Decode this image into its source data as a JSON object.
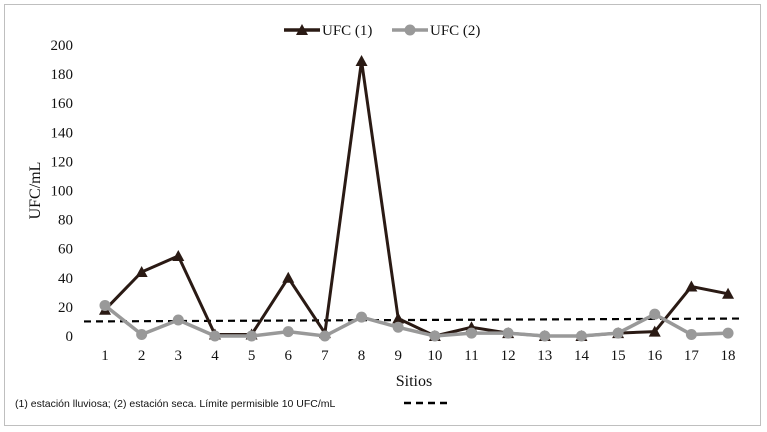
{
  "chart_data": {
    "type": "line",
    "ylabel": "UFC/mL",
    "xlabel": "Sitios",
    "ylim": [
      0,
      200
    ],
    "yticks": [
      "0",
      "20",
      "40",
      "60",
      "80",
      "100",
      "120",
      "140",
      "160",
      "180",
      "200"
    ],
    "categories": [
      "1",
      "2",
      "3",
      "4",
      "5",
      "6",
      "7",
      "8",
      "9",
      "10",
      "11",
      "12",
      "13",
      "14",
      "15",
      "16",
      "17",
      "18"
    ],
    "grid": false,
    "legend_position": "top",
    "series": [
      {
        "name": "UFC (1)",
        "marker": "triangle",
        "color": "#2a1a14",
        "values": [
          18,
          44,
          55,
          1,
          1,
          40,
          2,
          189,
          12,
          0,
          6,
          2,
          0,
          0,
          2,
          3,
          34,
          29
        ]
      },
      {
        "name": "UFC (2)",
        "marker": "circle",
        "color": "#999999",
        "values": [
          21,
          1,
          11,
          0,
          0,
          3,
          0,
          13,
          6,
          0,
          2,
          2,
          0,
          0,
          2,
          15,
          1,
          2
        ]
      }
    ],
    "reference_line": {
      "style": "dashed",
      "color": "#000000",
      "values_from_to": [
        10,
        12
      ]
    },
    "footnote": "(1) estación lluviosa; (2) estación seca. Límite permisible 10 UFC/mL"
  }
}
